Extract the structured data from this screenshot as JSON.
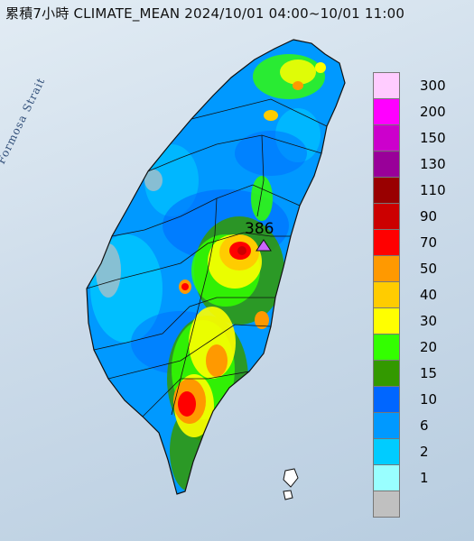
{
  "title": "累積7小時 CLIMATE_MEAN 2024/10/01 04:00~10/01 11:00",
  "strait_label": "Formosa Strait",
  "max_label": "386",
  "legend": {
    "levels": [
      {
        "label": "300",
        "color": "#ffccff"
      },
      {
        "label": "200",
        "color": "#ff00ff"
      },
      {
        "label": "150",
        "color": "#cc00cc"
      },
      {
        "label": "130",
        "color": "#990099"
      },
      {
        "label": "110",
        "color": "#990000"
      },
      {
        "label": "90",
        "color": "#cc0000"
      },
      {
        "label": "70",
        "color": "#ff0000"
      },
      {
        "label": "50",
        "color": "#ff9900"
      },
      {
        "label": "40",
        "color": "#ffcc00"
      },
      {
        "label": "30",
        "color": "#ffff00"
      },
      {
        "label": "20",
        "color": "#33ff00"
      },
      {
        "label": "15",
        "color": "#339900"
      },
      {
        "label": "10",
        "color": "#0066ff"
      },
      {
        "label": "6",
        "color": "#0099ff"
      },
      {
        "label": "2",
        "color": "#00ccff"
      },
      {
        "label": "1",
        "color": "#99ffff"
      },
      {
        "label": "",
        "color": "#c0c0c0"
      }
    ]
  }
}
